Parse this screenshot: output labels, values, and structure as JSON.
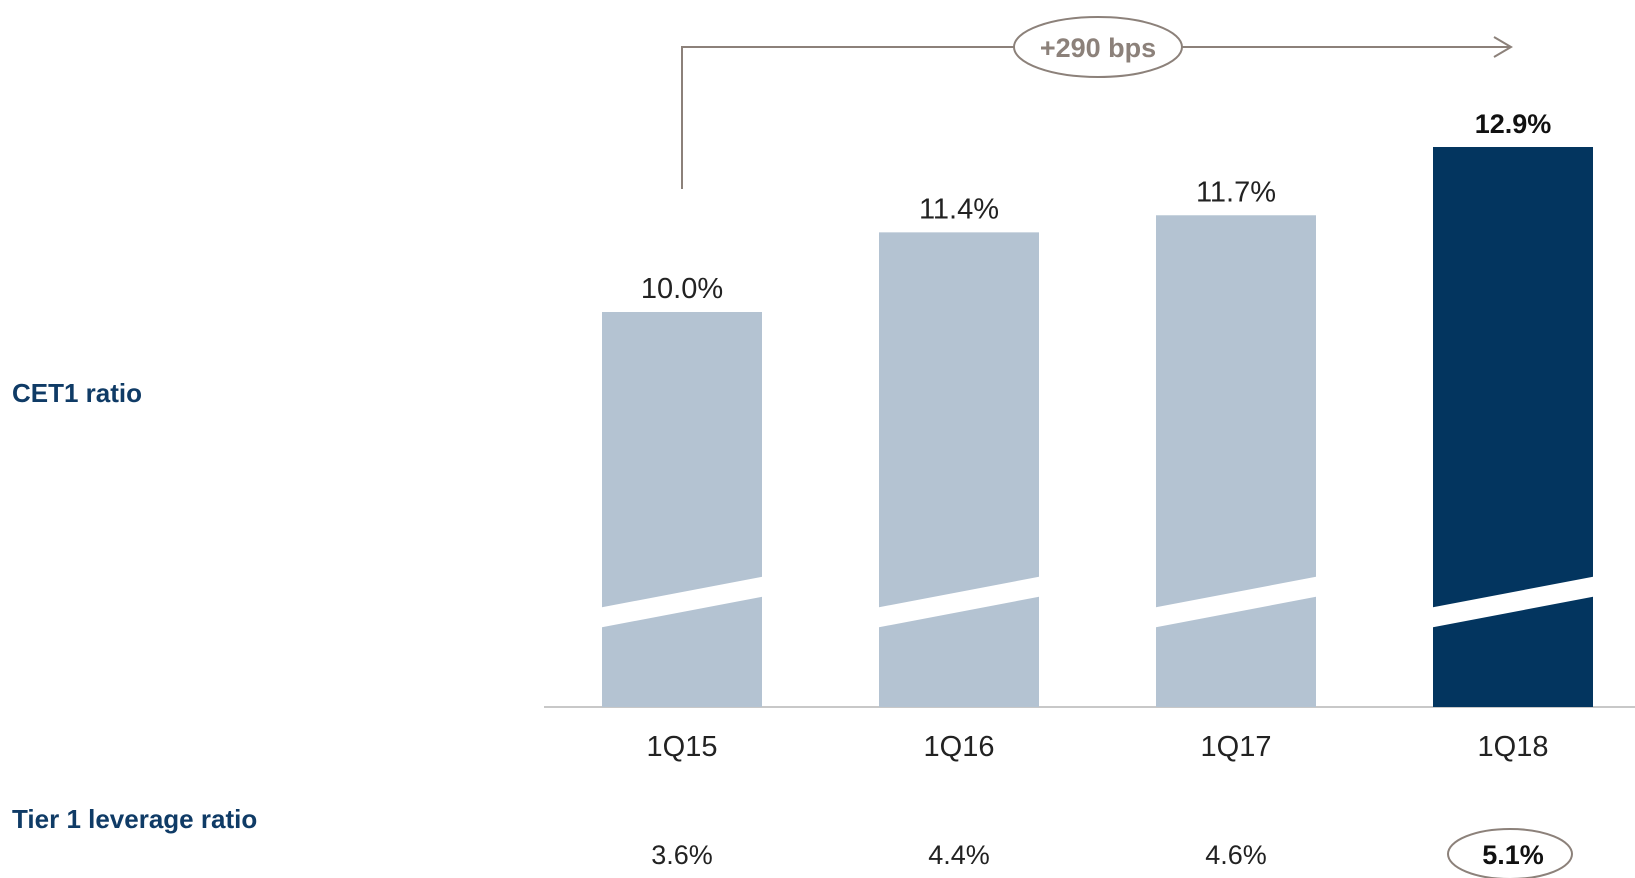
{
  "labels": {
    "cet1": "CET1 ratio",
    "tier1": "Tier 1 leverage ratio"
  },
  "annotation": {
    "change_label": "+290 bps"
  },
  "colors": {
    "bar_past": "#b4c3d2",
    "bar_current": "#03355f",
    "label_blue": "#0f3b66",
    "annotation_gray": "#8c817a",
    "axis": "#c8c8c8"
  },
  "chart_data": {
    "type": "bar",
    "categories": [
      "1Q15",
      "1Q16",
      "1Q17",
      "1Q18"
    ],
    "series": [
      {
        "values": [
          10.0,
          11.4,
          11.7,
          12.9
        ],
        "data_labels": [
          "10.0%",
          "11.4%",
          "11.7%",
          "12.9%"
        ]
      }
    ],
    "y_axis_broken": true,
    "highlight_index": 3,
    "tier1_leverage": {
      "values": [
        3.6,
        4.4,
        4.6,
        5.1
      ],
      "labels": [
        "3.6%",
        "4.4%",
        "4.6%",
        "5.1%"
      ]
    }
  }
}
